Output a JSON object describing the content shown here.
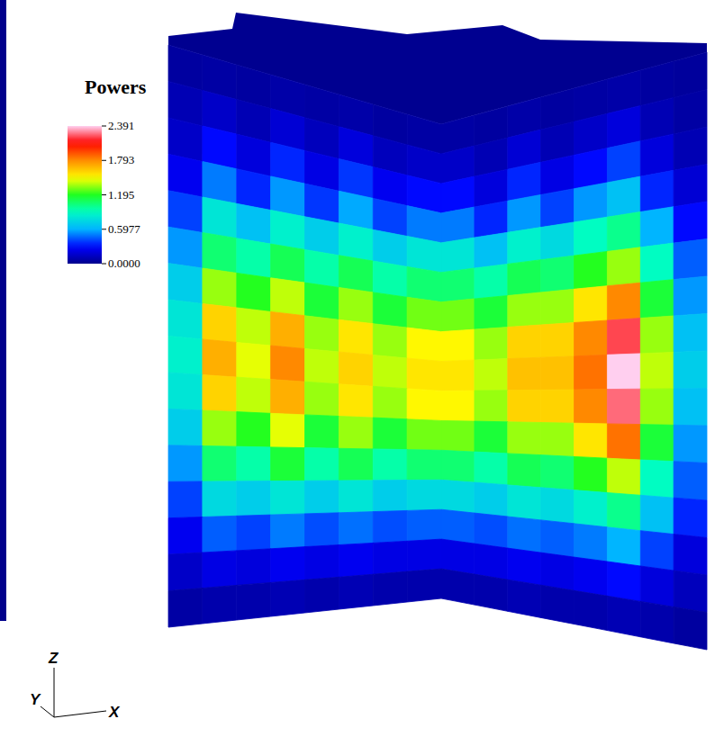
{
  "chart_data": {
    "type": "heatmap",
    "title": "Powers",
    "x_label": "X",
    "y_label": "Y",
    "z_label": "Z",
    "color_range": [
      0,
      2.391
    ],
    "color_ticks": [
      {
        "value": 0,
        "label": "0.0000"
      },
      0.5977,
      1.195,
      1.793,
      2.391
    ],
    "cells": [
      [
        [
          0.05,
          0.06,
          0.05,
          0.07,
          0.06,
          0.07,
          0.05,
          0.06
        ],
        [
          0.1,
          0.15,
          0.1,
          0.18,
          0.12,
          0.2,
          0.12,
          0.15
        ],
        [
          0.15,
          0.3,
          0.2,
          0.35,
          0.22,
          0.38,
          0.25,
          0.3
        ],
        [
          0.25,
          0.5,
          0.35,
          0.55,
          0.38,
          0.58,
          0.4,
          0.5
        ],
        [
          0.4,
          0.8,
          0.65,
          0.85,
          0.7,
          0.85,
          0.7,
          0.8
        ],
        [
          0.55,
          1.05,
          0.95,
          1.1,
          0.95,
          1.1,
          0.95,
          1.05
        ],
        [
          0.7,
          1.35,
          1.2,
          1.4,
          1.15,
          1.35,
          1.15,
          1.3
        ],
        [
          0.8,
          1.6,
          1.4,
          1.7,
          1.35,
          1.55,
          1.35,
          1.5
        ],
        [
          0.85,
          1.7,
          1.45,
          1.8,
          1.4,
          1.6,
          1.4,
          1.55
        ],
        [
          0.8,
          1.6,
          1.4,
          1.7,
          1.35,
          1.55,
          1.35,
          1.5
        ],
        [
          0.7,
          1.35,
          1.2,
          1.45,
          1.15,
          1.35,
          1.15,
          1.3
        ],
        [
          0.55,
          1.05,
          0.95,
          1.15,
          0.95,
          1.1,
          0.95,
          1.05
        ],
        [
          0.4,
          0.75,
          0.7,
          0.8,
          0.7,
          0.8,
          0.7,
          0.75
        ],
        [
          0.25,
          0.45,
          0.4,
          0.5,
          0.42,
          0.48,
          0.42,
          0.45
        ],
        [
          0.15,
          0.22,
          0.2,
          0.25,
          0.22,
          0.25,
          0.22,
          0.22
        ],
        [
          0.06,
          0.08,
          0.08,
          0.1,
          0.08,
          0.1,
          0.08,
          0.08
        ]
      ],
      [
        [
          0.06,
          0.05,
          0.07,
          0.05,
          0.06,
          0.07,
          0.05,
          0.04
        ],
        [
          0.15,
          0.1,
          0.18,
          0.1,
          0.15,
          0.2,
          0.1,
          0.06
        ],
        [
          0.3,
          0.2,
          0.35,
          0.22,
          0.3,
          0.4,
          0.2,
          0.1
        ],
        [
          0.5,
          0.35,
          0.55,
          0.4,
          0.55,
          0.65,
          0.35,
          0.18
        ],
        [
          0.8,
          0.65,
          0.85,
          0.75,
          0.9,
          1.0,
          0.6,
          0.3
        ],
        [
          1.05,
          0.95,
          1.1,
          1.05,
          1.2,
          1.35,
          0.9,
          0.45
        ],
        [
          1.3,
          1.15,
          1.35,
          1.35,
          1.55,
          1.8,
          1.15,
          0.55
        ],
        [
          1.5,
          1.35,
          1.6,
          1.6,
          1.8,
          2.2,
          1.35,
          0.65
        ],
        [
          1.55,
          1.4,
          1.65,
          1.65,
          1.85,
          2.39,
          1.4,
          0.7
        ],
        [
          1.5,
          1.35,
          1.6,
          1.6,
          1.8,
          2.25,
          1.35,
          0.65
        ],
        [
          1.3,
          1.15,
          1.35,
          1.35,
          1.55,
          1.85,
          1.15,
          0.55
        ],
        [
          1.05,
          0.95,
          1.1,
          1.05,
          1.2,
          1.4,
          0.9,
          0.45
        ],
        [
          0.75,
          0.7,
          0.8,
          0.75,
          0.85,
          1.0,
          0.65,
          0.35
        ],
        [
          0.45,
          0.42,
          0.48,
          0.45,
          0.5,
          0.6,
          0.4,
          0.2
        ],
        [
          0.22,
          0.22,
          0.25,
          0.22,
          0.25,
          0.3,
          0.2,
          0.12
        ],
        [
          0.08,
          0.08,
          0.1,
          0.08,
          0.08,
          0.1,
          0.08,
          0.05
        ]
      ]
    ]
  }
}
